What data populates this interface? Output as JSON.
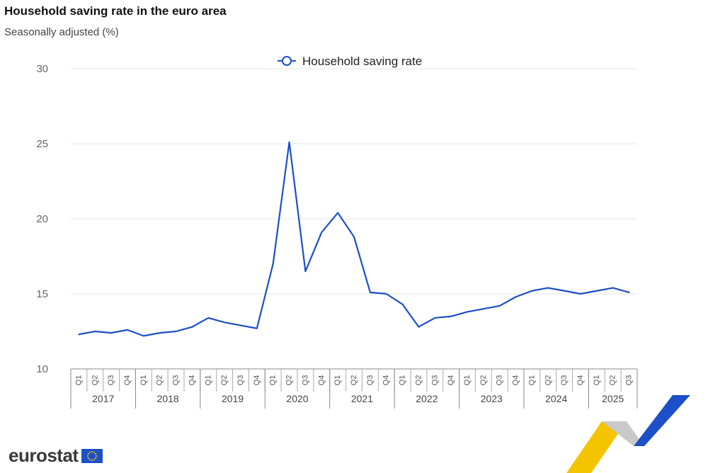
{
  "title": "Household saving rate in the euro area",
  "subtitle": "Seasonally adjusted (%)",
  "logo_text": "eurostat",
  "colors": {
    "series": "#1c4fc8",
    "grid": "#e6e6e6",
    "axis": "#888888"
  },
  "chart_data": {
    "type": "line",
    "title": "Household saving rate in the euro area",
    "subtitle": "Seasonally adjusted (%)",
    "xlabel": "",
    "ylabel": "",
    "ylim": [
      10,
      30
    ],
    "yticks": [
      10,
      15,
      20,
      25,
      30
    ],
    "grid": true,
    "legend_position": "top-center",
    "quarters": [
      "Q1",
      "Q2",
      "Q3",
      "Q4",
      "Q1",
      "Q2",
      "Q3",
      "Q4",
      "Q1",
      "Q2",
      "Q3",
      "Q4",
      "Q1",
      "Q2",
      "Q3",
      "Q4",
      "Q1",
      "Q2",
      "Q3",
      "Q4",
      "Q1",
      "Q2",
      "Q3",
      "Q4",
      "Q1",
      "Q2",
      "Q3",
      "Q4",
      "Q1",
      "Q2",
      "Q3",
      "Q4",
      "Q1",
      "Q2",
      "Q3"
    ],
    "years": [
      {
        "label": "2017",
        "quarters": 4
      },
      {
        "label": "2018",
        "quarters": 4
      },
      {
        "label": "2019",
        "quarters": 4
      },
      {
        "label": "2020",
        "quarters": 4
      },
      {
        "label": "2021",
        "quarters": 4
      },
      {
        "label": "2022",
        "quarters": 4
      },
      {
        "label": "2023",
        "quarters": 4
      },
      {
        "label": "2024",
        "quarters": 4
      },
      {
        "label": "2025",
        "quarters": 3
      }
    ],
    "series": [
      {
        "name": "Household saving rate",
        "values": [
          12.3,
          12.5,
          12.4,
          12.6,
          12.2,
          12.4,
          12.5,
          12.8,
          13.4,
          13.1,
          12.9,
          12.7,
          17.0,
          25.1,
          16.5,
          19.1,
          20.4,
          18.8,
          15.1,
          15.0,
          14.3,
          12.8,
          13.4,
          13.5,
          13.8,
          14.0,
          14.2,
          14.8,
          15.2,
          15.4,
          15.2,
          15.0,
          15.2,
          15.4,
          15.1
        ]
      }
    ]
  }
}
